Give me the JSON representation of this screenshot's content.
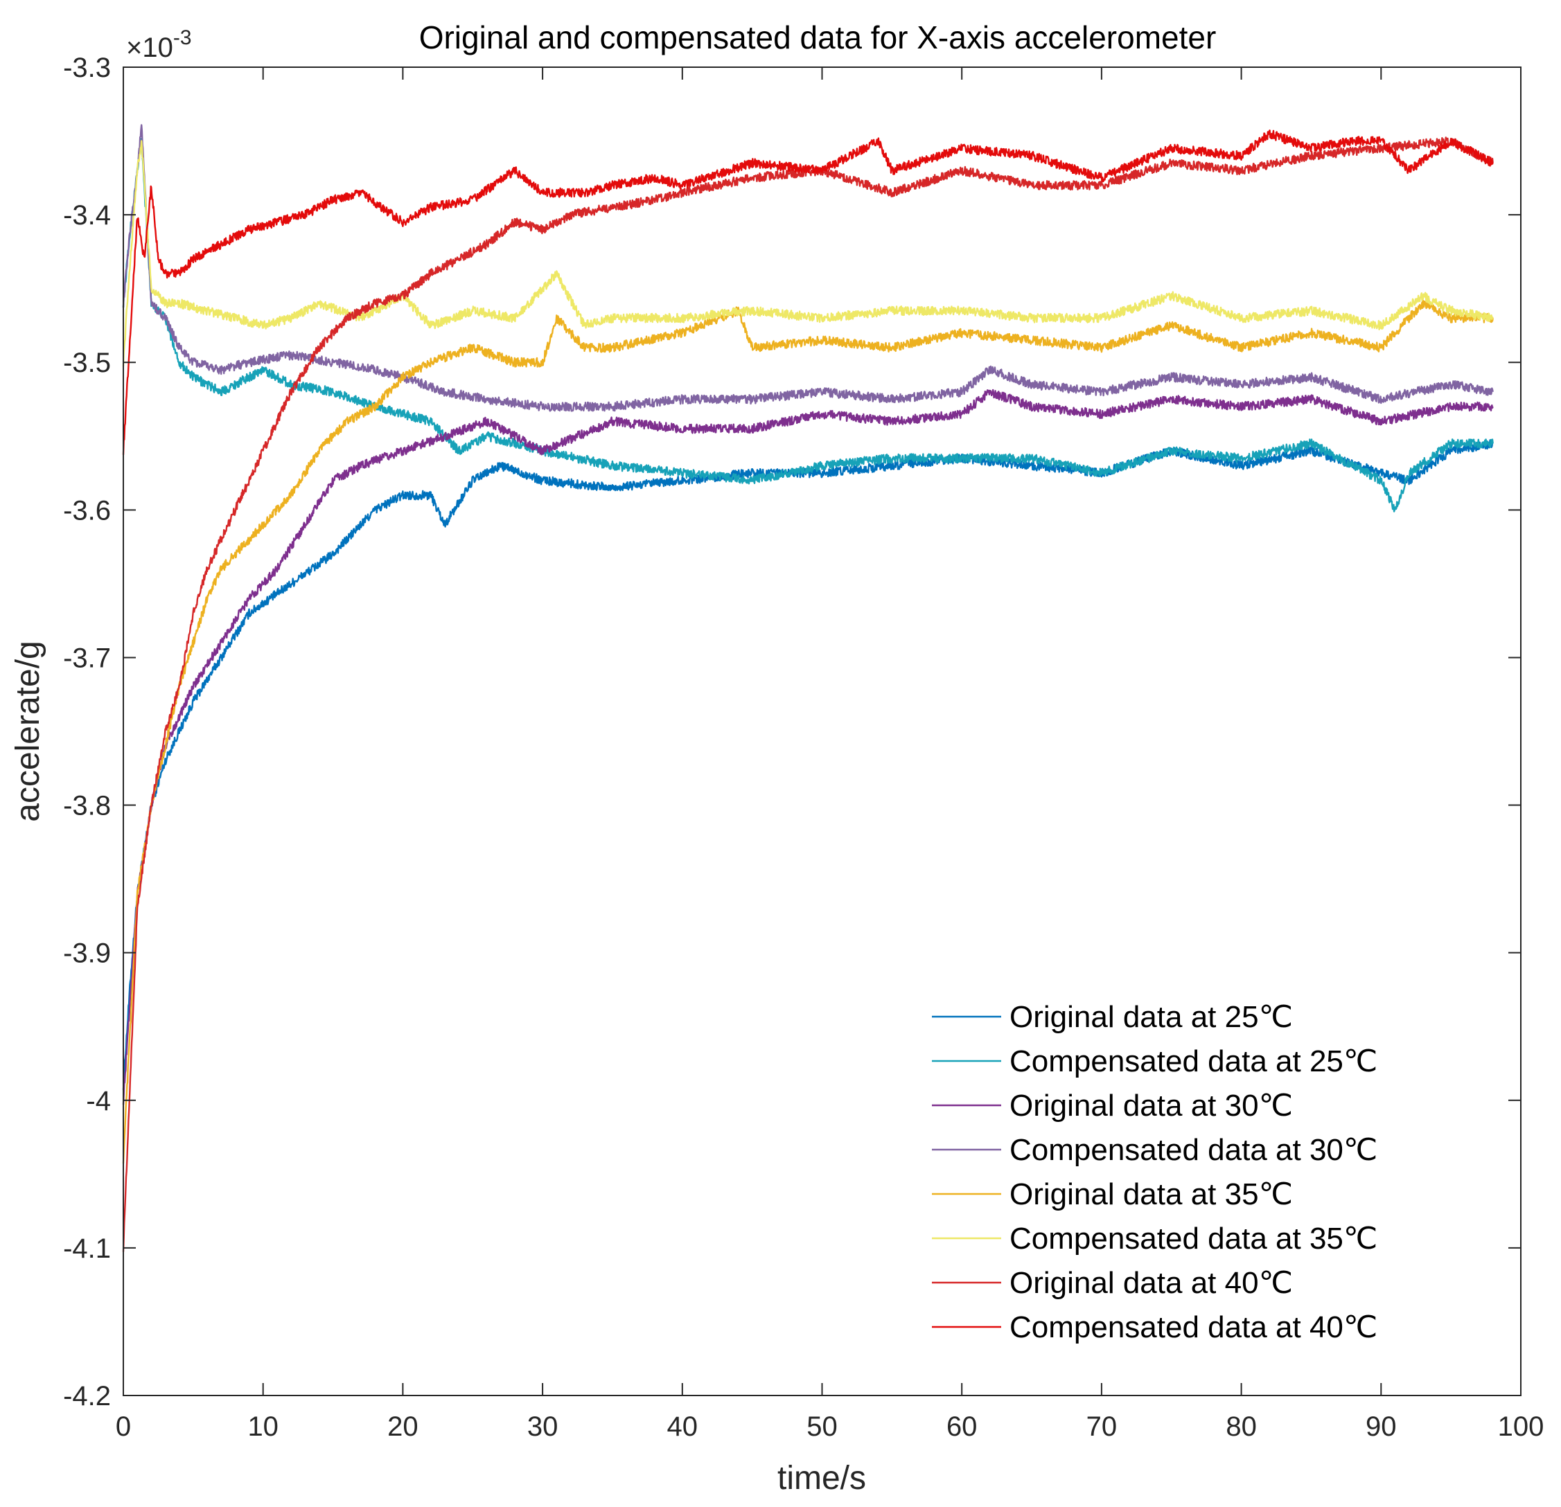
{
  "chart_data": {
    "type": "line",
    "title": "Original and compensated data for X-axis accelerometer",
    "xlabel": "time/s",
    "ylabel": "accelerate/g",
    "y_exponent": "×10",
    "y_exponent_power": "-3",
    "xlim": [
      0,
      100
    ],
    "ylim": [
      -4.2,
      -3.3
    ],
    "x_ticks": [
      "0",
      "10",
      "20",
      "30",
      "40",
      "50",
      "60",
      "70",
      "80",
      "90",
      "100"
    ],
    "y_ticks": [
      "-3.3",
      "-3.4",
      "-3.5",
      "-3.6",
      "-3.7",
      "-3.8",
      "-3.9",
      "-4",
      "-4.1",
      "-4.2"
    ],
    "grid": false,
    "legend_position": "bottom-right",
    "series": [
      {
        "name": "Original data at 25℃",
        "color": "#0072BD",
        "x": [
          0,
          0.5,
          1,
          2,
          3,
          4,
          5,
          7,
          9,
          12,
          15,
          18,
          20,
          22,
          23,
          25,
          27,
          30,
          35,
          40,
          45,
          50,
          55,
          60,
          65,
          70,
          75,
          80,
          85,
          90,
          92,
          95,
          98
        ],
        "values": [
          -3.99,
          -3.92,
          -3.86,
          -3.8,
          -3.77,
          -3.75,
          -3.73,
          -3.7,
          -3.67,
          -3.65,
          -3.63,
          -3.6,
          -3.59,
          -3.59,
          -3.61,
          -3.58,
          -3.57,
          -3.58,
          -3.585,
          -3.58,
          -3.575,
          -3.575,
          -3.57,
          -3.565,
          -3.57,
          -3.575,
          -3.56,
          -3.57,
          -3.56,
          -3.575,
          -3.58,
          -3.56,
          -3.555
        ]
      },
      {
        "name": "Compensated data at 25℃",
        "color": "#17A2B8",
        "x": [
          0,
          0.5,
          1,
          1.3,
          2,
          3,
          4,
          5,
          7,
          10,
          12,
          15,
          18,
          20,
          22,
          24,
          26,
          28,
          30,
          35,
          40,
          45,
          50,
          55,
          60,
          65,
          70,
          75,
          80,
          85,
          90,
          91,
          92,
          95,
          98
        ],
        "values": [
          -3.46,
          -3.41,
          -3.37,
          -3.35,
          -3.46,
          -3.47,
          -3.5,
          -3.51,
          -3.52,
          -3.505,
          -3.515,
          -3.52,
          -3.53,
          -3.535,
          -3.54,
          -3.56,
          -3.55,
          -3.555,
          -3.56,
          -3.57,
          -3.575,
          -3.58,
          -3.57,
          -3.565,
          -3.565,
          -3.565,
          -3.575,
          -3.56,
          -3.565,
          -3.555,
          -3.58,
          -3.6,
          -3.575,
          -3.555,
          -3.555
        ]
      },
      {
        "name": "Original data at 30℃",
        "color": "#7E2F8E",
        "x": [
          0,
          1,
          2,
          3,
          5,
          7,
          9,
          11,
          13,
          15,
          17,
          20,
          23,
          26,
          28,
          30,
          35,
          40,
          45,
          50,
          55,
          60,
          62,
          65,
          70,
          75,
          80,
          85,
          90,
          95,
          98
        ],
        "values": [
          -4.0,
          -3.86,
          -3.8,
          -3.76,
          -3.72,
          -3.69,
          -3.66,
          -3.64,
          -3.61,
          -3.58,
          -3.57,
          -3.56,
          -3.55,
          -3.54,
          -3.55,
          -3.56,
          -3.54,
          -3.545,
          -3.545,
          -3.535,
          -3.54,
          -3.535,
          -3.52,
          -3.53,
          -3.535,
          -3.525,
          -3.53,
          -3.525,
          -3.54,
          -3.53,
          -3.53
        ]
      },
      {
        "name": "Compensated data at 30℃",
        "color": "#8064A2",
        "x": [
          0,
          0.5,
          1,
          1.3,
          2,
          3,
          4,
          5,
          7,
          9,
          12,
          15,
          18,
          20,
          23,
          26,
          30,
          35,
          40,
          45,
          50,
          55,
          60,
          62,
          65,
          70,
          75,
          80,
          85,
          90,
          95,
          98
        ],
        "values": [
          -3.46,
          -3.41,
          -3.37,
          -3.34,
          -3.46,
          -3.47,
          -3.49,
          -3.5,
          -3.505,
          -3.5,
          -3.495,
          -3.5,
          -3.505,
          -3.51,
          -3.52,
          -3.525,
          -3.53,
          -3.53,
          -3.525,
          -3.525,
          -3.52,
          -3.525,
          -3.52,
          -3.505,
          -3.515,
          -3.52,
          -3.51,
          -3.515,
          -3.51,
          -3.525,
          -3.515,
          -3.52
        ]
      },
      {
        "name": "Original data at 35℃",
        "color": "#EDB120",
        "x": [
          0,
          1,
          2,
          3,
          4,
          5,
          6,
          7,
          8,
          10,
          12,
          14,
          16,
          18,
          20,
          22,
          25,
          28,
          30,
          31,
          33,
          35,
          40,
          44,
          45,
          50,
          55,
          60,
          65,
          70,
          75,
          80,
          85,
          90,
          93,
          95,
          98
        ],
        "values": [
          -4.04,
          -3.86,
          -3.8,
          -3.76,
          -3.72,
          -3.69,
          -3.66,
          -3.64,
          -3.63,
          -3.61,
          -3.59,
          -3.56,
          -3.54,
          -3.53,
          -3.51,
          -3.5,
          -3.49,
          -3.5,
          -3.5,
          -3.47,
          -3.49,
          -3.49,
          -3.48,
          -3.465,
          -3.49,
          -3.485,
          -3.49,
          -3.48,
          -3.485,
          -3.49,
          -3.475,
          -3.49,
          -3.48,
          -3.49,
          -3.46,
          -3.47,
          -3.47
        ]
      },
      {
        "name": "Compensated data at 35℃",
        "color": "#EEE866",
        "x": [
          0,
          0.5,
          1,
          1.3,
          2,
          3,
          4,
          6,
          8,
          10,
          12,
          14,
          17,
          20,
          22,
          25,
          28,
          31,
          33,
          35,
          40,
          45,
          50,
          55,
          60,
          65,
          70,
          75,
          80,
          85,
          90,
          93,
          95,
          98
        ],
        "values": [
          -3.5,
          -3.43,
          -3.37,
          -3.35,
          -3.45,
          -3.46,
          -3.46,
          -3.465,
          -3.47,
          -3.475,
          -3.47,
          -3.46,
          -3.47,
          -3.455,
          -3.475,
          -3.465,
          -3.47,
          -3.44,
          -3.475,
          -3.47,
          -3.47,
          -3.465,
          -3.47,
          -3.465,
          -3.465,
          -3.47,
          -3.47,
          -3.455,
          -3.47,
          -3.465,
          -3.475,
          -3.455,
          -3.465,
          -3.47
        ]
      },
      {
        "name": "Original data at 40℃",
        "color": "#D62728",
        "x": [
          0,
          1,
          2,
          3,
          4,
          5,
          6,
          8,
          10,
          12,
          14,
          16,
          18,
          20,
          22,
          24,
          26,
          28,
          30,
          32,
          35,
          38,
          40,
          45,
          50,
          55,
          60,
          65,
          70,
          75,
          80,
          85,
          90,
          95,
          98
        ],
        "values": [
          -4.1,
          -3.87,
          -3.8,
          -3.75,
          -3.72,
          -3.67,
          -3.64,
          -3.6,
          -3.56,
          -3.52,
          -3.49,
          -3.47,
          -3.46,
          -3.455,
          -3.44,
          -3.43,
          -3.42,
          -3.405,
          -3.41,
          -3.4,
          -3.395,
          -3.39,
          -3.385,
          -3.375,
          -3.37,
          -3.385,
          -3.37,
          -3.38,
          -3.38,
          -3.365,
          -3.37,
          -3.36,
          -3.355,
          -3.35,
          -3.365
        ]
      },
      {
        "name": "Compensated data at 40℃",
        "color": "#E30B0B",
        "x": [
          0,
          0.5,
          1,
          1.5,
          2,
          2.5,
          3,
          4,
          5,
          7,
          9,
          11,
          13,
          15,
          17,
          20,
          22,
          25,
          28,
          30,
          33,
          35,
          38,
          40,
          45,
          50,
          54,
          55,
          60,
          65,
          70,
          75,
          80,
          82,
          85,
          88,
          90,
          92,
          95,
          98
        ],
        "values": [
          -3.56,
          -3.48,
          -3.4,
          -3.43,
          -3.38,
          -3.43,
          -3.44,
          -3.44,
          -3.43,
          -3.42,
          -3.41,
          -3.405,
          -3.4,
          -3.39,
          -3.385,
          -3.405,
          -3.395,
          -3.39,
          -3.37,
          -3.385,
          -3.385,
          -3.38,
          -3.375,
          -3.38,
          -3.365,
          -3.37,
          -3.35,
          -3.37,
          -3.355,
          -3.36,
          -3.375,
          -3.355,
          -3.36,
          -3.345,
          -3.355,
          -3.35,
          -3.35,
          -3.37,
          -3.35,
          -3.365
        ]
      }
    ]
  }
}
